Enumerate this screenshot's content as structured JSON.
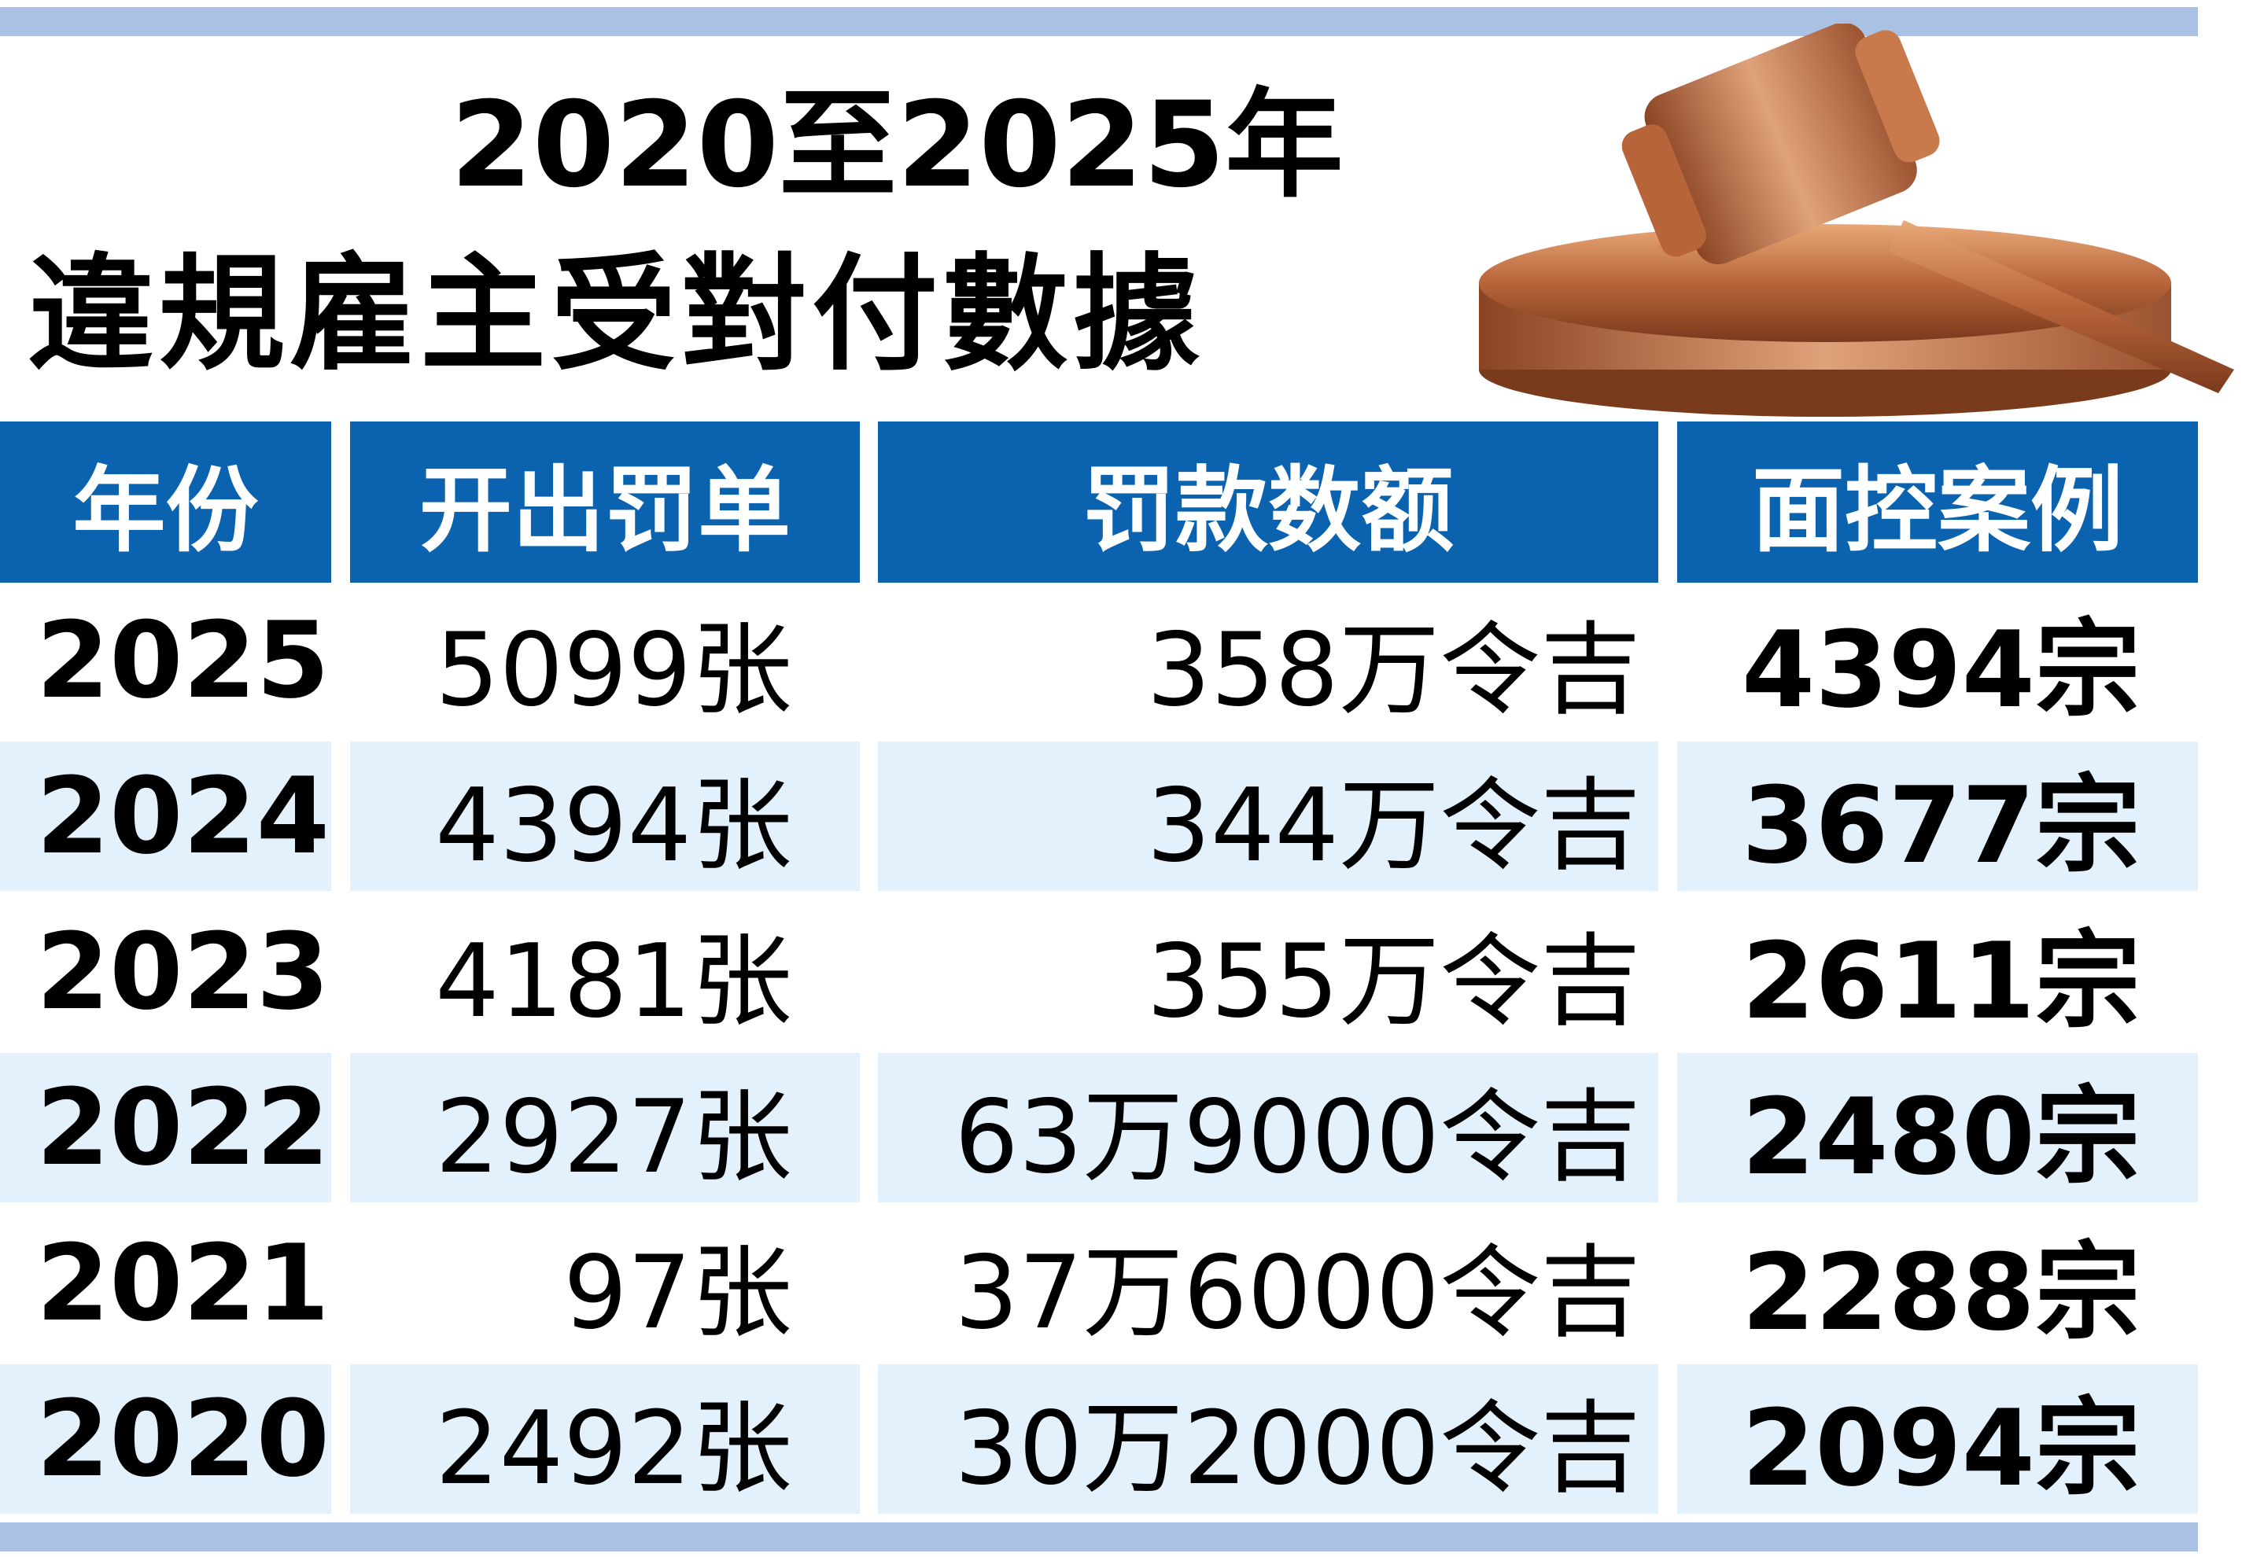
{
  "header": {
    "title_lines": [
      "2020至2025年",
      "違規雇主受對付數據"
    ]
  },
  "table": {
    "columns": [
      "年份",
      "开出罚单",
      "罚款数额",
      "面控案例"
    ],
    "rows": [
      [
        "2025",
        "5099张",
        "358万令吉",
        "4394宗"
      ],
      [
        "2024",
        "4394张",
        "344万令吉",
        "3677宗"
      ],
      [
        "2023",
        "4181张",
        "355万令吉",
        "2611宗"
      ],
      [
        "2022",
        "2927张",
        "63万9000令吉",
        "2480宗"
      ],
      [
        "2021",
        "97张",
        "37万6000令吉",
        "2288宗"
      ],
      [
        "2020",
        "2492张",
        "30万2000令吉",
        "2094宗"
      ]
    ]
  }
}
